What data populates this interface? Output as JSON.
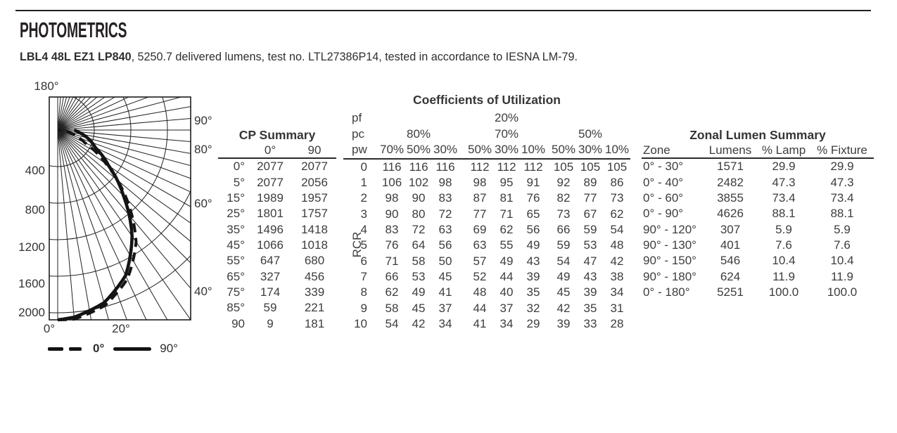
{
  "page": {
    "title": "PHOTOMETRICS",
    "subtitle_bold": "LBL4 48L EZ1 LP840",
    "subtitle_rest": ", 5250.7 delivered lumens, test no. LTL27386P14, tested in accordance to IESNA LM-79."
  },
  "chart_data": {
    "type": "line",
    "variant": "polar-candela-distribution-quarter",
    "radial_ticks": [
      400,
      800,
      1200,
      1600,
      2000
    ],
    "radial_max_cd": 2077,
    "angle_labels": {
      "top": "180°",
      "right": [
        "90°",
        "80°",
        "60°",
        "40°"
      ],
      "right_deg": [
        90,
        80,
        60,
        40
      ],
      "bottom": [
        "0°",
        "20°"
      ],
      "bottom_deg": [
        0,
        20
      ]
    },
    "series": [
      {
        "name": "0°",
        "style": "dashed",
        "angles_deg": [
          0,
          5,
          15,
          25,
          35,
          45,
          55,
          65,
          75,
          85,
          90
        ],
        "candela": [
          2077,
          2077,
          1989,
          1801,
          1496,
          1066,
          647,
          327,
          174,
          59,
          9
        ]
      },
      {
        "name": "90°",
        "style": "solid",
        "angles_deg": [
          0,
          5,
          15,
          25,
          35,
          45,
          55,
          65,
          75,
          85,
          90
        ],
        "candela": [
          2077,
          2056,
          1957,
          1757,
          1418,
          1018,
          680,
          456,
          339,
          221,
          181
        ]
      }
    ],
    "legend": [
      {
        "label": "0°",
        "style": "dashed"
      },
      {
        "label": "90°",
        "style": "solid"
      }
    ]
  },
  "cp_summary": {
    "title": "CP Summary",
    "col_headers": [
      "",
      "0°",
      "90"
    ],
    "rows": [
      [
        "0°",
        "2077",
        "2077"
      ],
      [
        "5°",
        "2077",
        "2056"
      ],
      [
        "15°",
        "1989",
        "1957"
      ],
      [
        "25°",
        "1801",
        "1757"
      ],
      [
        "35°",
        "1496",
        "1418"
      ],
      [
        "45°",
        "1066",
        "1018"
      ],
      [
        "55°",
        "647",
        "680"
      ],
      [
        "65°",
        "327",
        "456"
      ],
      [
        "75°",
        "174",
        "339"
      ],
      [
        "85°",
        "59",
        "221"
      ],
      [
        "90",
        "9",
        "181"
      ]
    ]
  },
  "cu": {
    "title": "Coefficients of Utilization",
    "pf_label": "pf",
    "pf_value": "20%",
    "pc_label": "pc",
    "pc_values": [
      "80%",
      "70%",
      "50%"
    ],
    "pw_label": "pw",
    "pw_values": [
      [
        "70%",
        "50%",
        "30%"
      ],
      [
        "50%",
        "30%",
        "10%"
      ],
      [
        "50%",
        "30%",
        "10%"
      ]
    ],
    "rcr_label": "RCR",
    "rows": [
      {
        "rcr": "0",
        "groups": [
          [
            "116",
            "116",
            "116"
          ],
          [
            "112",
            "112",
            "112"
          ],
          [
            "105",
            "105",
            "105"
          ]
        ]
      },
      {
        "rcr": "1",
        "groups": [
          [
            "106",
            "102",
            "98"
          ],
          [
            "98",
            "95",
            "91"
          ],
          [
            "92",
            "89",
            "86"
          ]
        ]
      },
      {
        "rcr": "2",
        "groups": [
          [
            "98",
            "90",
            "83"
          ],
          [
            "87",
            "81",
            "76"
          ],
          [
            "82",
            "77",
            "73"
          ]
        ]
      },
      {
        "rcr": "3",
        "groups": [
          [
            "90",
            "80",
            "72"
          ],
          [
            "77",
            "71",
            "65"
          ],
          [
            "73",
            "67",
            "62"
          ]
        ]
      },
      {
        "rcr": "4",
        "groups": [
          [
            "83",
            "72",
            "63"
          ],
          [
            "69",
            "62",
            "56"
          ],
          [
            "66",
            "59",
            "54"
          ]
        ]
      },
      {
        "rcr": "5",
        "groups": [
          [
            "76",
            "64",
            "56"
          ],
          [
            "63",
            "55",
            "49"
          ],
          [
            "59",
            "53",
            "48"
          ]
        ]
      },
      {
        "rcr": "6",
        "groups": [
          [
            "71",
            "58",
            "50"
          ],
          [
            "57",
            "49",
            "43"
          ],
          [
            "54",
            "47",
            "42"
          ]
        ]
      },
      {
        "rcr": "7",
        "groups": [
          [
            "66",
            "53",
            "45"
          ],
          [
            "52",
            "44",
            "39"
          ],
          [
            "49",
            "43",
            "38"
          ]
        ]
      },
      {
        "rcr": "8",
        "groups": [
          [
            "62",
            "49",
            "41"
          ],
          [
            "48",
            "40",
            "35"
          ],
          [
            "45",
            "39",
            "34"
          ]
        ]
      },
      {
        "rcr": "9",
        "groups": [
          [
            "58",
            "45",
            "37"
          ],
          [
            "44",
            "37",
            "32"
          ],
          [
            "42",
            "35",
            "31"
          ]
        ]
      },
      {
        "rcr": "10",
        "groups": [
          [
            "54",
            "42",
            "34"
          ],
          [
            "41",
            "34",
            "29"
          ],
          [
            "39",
            "33",
            "28"
          ]
        ]
      }
    ]
  },
  "zonal": {
    "title": "Zonal Lumen Summary",
    "col_headers": [
      "Zone",
      "Lumens",
      "% Lamp",
      "% Fixture"
    ],
    "rows": [
      [
        "0° - 30°",
        "1571",
        "29.9",
        "29.9"
      ],
      [
        "0° - 40°",
        "2482",
        "47.3",
        "47.3"
      ],
      [
        "0° - 60°",
        "3855",
        "73.4",
        "73.4"
      ],
      [
        "0° - 90°",
        "4626",
        "88.1",
        "88.1"
      ],
      [
        "90° - 120°",
        "307",
        "5.9",
        "5.9"
      ],
      [
        "90° - 130°",
        "401",
        "7.6",
        "7.6"
      ],
      [
        "90° - 150°",
        "546",
        "10.4",
        "10.4"
      ],
      [
        "90° - 180°",
        "624",
        "11.9",
        "11.9"
      ],
      [
        "0° - 180°",
        "5251",
        "100.0",
        "100.0"
      ]
    ]
  }
}
